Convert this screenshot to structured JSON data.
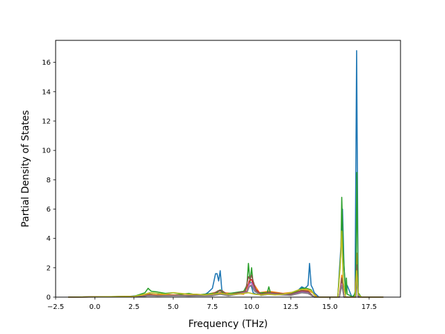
{
  "chart_data": {
    "type": "line",
    "title": "",
    "xlabel": "Frequency (THz)",
    "ylabel": "Partial Density of States",
    "xlim": [
      -2.5,
      19.5
    ],
    "ylim": [
      0,
      17.5
    ],
    "xticks": [
      -2.5,
      0.0,
      2.5,
      5.0,
      7.5,
      10.0,
      12.5,
      15.0,
      17.5
    ],
    "xtick_labels": [
      "−2.5",
      "0.0",
      "2.5",
      "5.0",
      "7.5",
      "10.0",
      "12.5",
      "15.0",
      "17.5"
    ],
    "yticks": [
      0,
      2,
      4,
      6,
      8,
      10,
      12,
      14,
      16
    ],
    "ytick_labels": [
      "0",
      "2",
      "4",
      "6",
      "8",
      "10",
      "12",
      "14",
      "16"
    ],
    "grid": false,
    "legend": false,
    "series": [
      {
        "color": "#1f77b4",
        "x": [
          -1.7,
          2.2,
          3.2,
          3.4,
          3.6,
          3.9,
          4.2,
          5.0,
          6.0,
          6.9,
          7.2,
          7.5,
          7.7,
          7.8,
          7.9,
          8.0,
          8.1,
          8.2,
          8.3,
          8.6,
          9.0,
          9.5,
          9.7,
          9.8,
          9.9,
          10.0,
          10.1,
          10.3,
          10.6,
          11.0,
          11.1,
          11.3,
          12.0,
          12.7,
          13.0,
          13.2,
          13.4,
          13.6,
          13.7,
          13.8,
          13.9,
          14.0,
          14.3,
          15.5,
          15.7,
          15.8,
          15.9,
          16.0,
          16.1,
          16.4,
          16.6,
          16.7,
          16.8,
          17.0,
          18.4
        ],
        "y": [
          0,
          0.05,
          0.15,
          0.25,
          0.2,
          0.15,
          0.2,
          0.15,
          0.12,
          0.1,
          0.3,
          0.6,
          1.6,
          1.6,
          1.1,
          1.8,
          0.5,
          0.3,
          0.15,
          0.2,
          0.3,
          0.3,
          0.4,
          0.7,
          0.8,
          0.7,
          0.3,
          0.2,
          0.2,
          0.3,
          0.4,
          0.2,
          0.2,
          0.3,
          0.5,
          0.7,
          0.6,
          0.8,
          2.3,
          0.8,
          0.6,
          0.3,
          0,
          0,
          3.5,
          6.0,
          2.0,
          0.5,
          0.8,
          0,
          0.2,
          16.8,
          0.1,
          0,
          0
        ]
      },
      {
        "color": "#ff7f0e",
        "x": [
          -1.7,
          2.5,
          3.4,
          4.0,
          5.0,
          6.0,
          7.0,
          7.8,
          8.0,
          8.2,
          9.5,
          9.8,
          10.0,
          10.2,
          10.5,
          11.1,
          12.0,
          12.8,
          13.3,
          13.6,
          13.9,
          14.2,
          15.6,
          15.75,
          15.9,
          16.6,
          16.7,
          16.8,
          18.4
        ],
        "y": [
          0,
          0.05,
          0.2,
          0.15,
          0.15,
          0.12,
          0.15,
          0.35,
          0.45,
          0.3,
          0.2,
          0.9,
          1.0,
          0.8,
          0.3,
          0.4,
          0.25,
          0.35,
          0.5,
          0.45,
          0.3,
          0,
          0,
          1.5,
          0,
          0,
          3.0,
          0,
          0
        ]
      },
      {
        "color": "#2ca02c",
        "x": [
          -1.7,
          2.5,
          3.2,
          3.4,
          3.6,
          4.0,
          4.5,
          5.0,
          5.5,
          6.0,
          6.5,
          7.0,
          7.5,
          7.8,
          8.0,
          8.1,
          8.3,
          9.5,
          9.7,
          9.8,
          9.9,
          10.0,
          10.1,
          10.2,
          10.4,
          11.0,
          11.1,
          11.2,
          12.0,
          12.7,
          13.2,
          13.5,
          13.8,
          14.1,
          15.5,
          15.7,
          15.75,
          15.85,
          16.0,
          16.05,
          16.1,
          16.5,
          16.65,
          16.72,
          16.8,
          17.0,
          18.4
        ],
        "y": [
          0,
          0.05,
          0.3,
          0.6,
          0.4,
          0.35,
          0.25,
          0.3,
          0.2,
          0.25,
          0.15,
          0.2,
          0.25,
          0.3,
          0.5,
          0.35,
          0.2,
          0.4,
          0.8,
          2.3,
          1.0,
          2.0,
          0.9,
          0.5,
          0.3,
          0.3,
          0.7,
          0.3,
          0.2,
          0.3,
          0.6,
          0.6,
          0.5,
          0,
          0,
          3.0,
          6.8,
          3.0,
          0.2,
          1.3,
          0.2,
          0,
          0.5,
          8.5,
          0.3,
          0,
          0
        ]
      },
      {
        "color": "#d62728",
        "x": [
          -1.7,
          3.0,
          3.4,
          4.0,
          5.0,
          6.0,
          7.5,
          8.0,
          8.5,
          9.7,
          9.85,
          10.0,
          10.2,
          10.6,
          11.1,
          12.5,
          13.2,
          13.6,
          14.0,
          15.6,
          15.75,
          15.9,
          16.65,
          16.72,
          16.8,
          18.4
        ],
        "y": [
          0,
          0.05,
          0.15,
          0.1,
          0.12,
          0.1,
          0.15,
          0.3,
          0.15,
          0.4,
          1.1,
          1.2,
          0.6,
          0.2,
          0.3,
          0.2,
          0.4,
          0.35,
          0,
          0,
          1.2,
          0,
          0,
          2.0,
          0,
          0
        ]
      },
      {
        "color": "#9467bd",
        "x": [
          -1.7,
          3.0,
          3.4,
          4.0,
          5.0,
          6.0,
          7.5,
          8.0,
          8.5,
          9.7,
          9.85,
          10.0,
          10.2,
          10.6,
          11.1,
          12.5,
          13.2,
          13.6,
          14.0,
          15.6,
          15.75,
          15.9,
          16.65,
          16.72,
          16.8,
          18.4
        ],
        "y": [
          0,
          0.05,
          0.12,
          0.1,
          0.1,
          0.08,
          0.12,
          0.25,
          0.12,
          0.35,
          0.9,
          1.0,
          0.5,
          0.15,
          0.25,
          0.15,
          0.35,
          0.3,
          0,
          0,
          1.0,
          0,
          0,
          1.6,
          0,
          0
        ]
      },
      {
        "color": "#8c564b",
        "x": [
          -1.7,
          3.0,
          3.4,
          4.0,
          5.0,
          6.0,
          7.5,
          7.9,
          8.0,
          8.1,
          8.5,
          9.6,
          9.8,
          9.9,
          10.0,
          10.1,
          10.3,
          10.6,
          11.1,
          12.5,
          13.2,
          13.6,
          14.0,
          15.6,
          15.75,
          15.9,
          16.65,
          16.72,
          16.8,
          18.4
        ],
        "y": [
          0,
          0.05,
          0.15,
          0.1,
          0.12,
          0.1,
          0.2,
          0.45,
          0.4,
          0.45,
          0.15,
          0.4,
          1.4,
          1.2,
          1.5,
          1.1,
          0.4,
          0.2,
          0.3,
          0.2,
          0.45,
          0.4,
          0,
          0,
          1.3,
          0,
          0,
          2.2,
          0,
          0
        ]
      },
      {
        "color": "#e377c2",
        "x": [
          -1.7,
          3.0,
          3.4,
          4.0,
          5.0,
          6.0,
          7.5,
          8.0,
          8.5,
          9.7,
          9.85,
          10.0,
          10.2,
          10.6,
          11.1,
          12.5,
          13.2,
          13.6,
          14.0,
          15.6,
          15.75,
          15.9,
          16.65,
          16.72,
          16.8,
          18.4
        ],
        "y": [
          0,
          0.04,
          0.1,
          0.08,
          0.1,
          0.08,
          0.1,
          0.2,
          0.1,
          0.3,
          0.8,
          0.85,
          0.4,
          0.12,
          0.2,
          0.12,
          0.3,
          0.25,
          0,
          0,
          0.9,
          0,
          0,
          1.4,
          0,
          0
        ]
      },
      {
        "color": "#7f7f7f",
        "x": [
          -1.7,
          3.0,
          3.4,
          4.0,
          5.0,
          6.0,
          7.5,
          8.0,
          8.5,
          9.7,
          9.85,
          10.0,
          10.2,
          10.6,
          11.1,
          12.5,
          13.2,
          13.6,
          14.0,
          15.6,
          15.75,
          15.9,
          16.65,
          16.72,
          16.8,
          18.4
        ],
        "y": [
          0,
          0.04,
          0.1,
          0.08,
          0.1,
          0.08,
          0.1,
          0.2,
          0.1,
          0.3,
          0.7,
          0.8,
          0.4,
          0.12,
          0.2,
          0.12,
          0.3,
          0.25,
          0,
          0,
          0.8,
          0,
          0,
          1.2,
          0,
          0
        ]
      },
      {
        "color": "#bcbd22",
        "x": [
          -1.7,
          2.5,
          3.2,
          3.5,
          4.0,
          4.5,
          5.0,
          5.5,
          6.0,
          6.5,
          7.0,
          7.5,
          8.0,
          8.5,
          9.0,
          9.5,
          9.8,
          10.0,
          10.2,
          10.6,
          11.0,
          11.5,
          12.0,
          12.5,
          13.0,
          13.5,
          13.8,
          14.1,
          15.5,
          15.65,
          15.75,
          15.85,
          16.0,
          16.6,
          16.7,
          16.8,
          17.0,
          18.4
        ],
        "y": [
          0,
          0.05,
          0.2,
          0.3,
          0.25,
          0.2,
          0.3,
          0.25,
          0.2,
          0.2,
          0.15,
          0.2,
          0.25,
          0.2,
          0.2,
          0.25,
          0.3,
          0.25,
          0.2,
          0.15,
          0.2,
          0.15,
          0.2,
          0.3,
          0.5,
          0.55,
          0.45,
          0,
          0,
          2.0,
          4.5,
          1.0,
          0,
          0,
          1.8,
          0.2,
          0,
          0
        ]
      }
    ]
  }
}
